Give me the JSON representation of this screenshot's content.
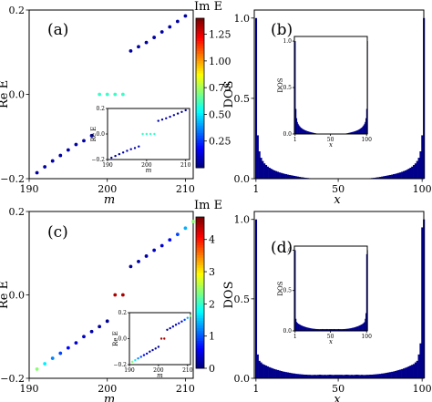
{
  "chart_data": [
    {
      "panel": "(a)",
      "type": "scatter",
      "xlabel": "m",
      "ylabel": "Re E",
      "xlim": [
        190,
        211
      ],
      "ylim": [
        -0.2,
        0.2
      ],
      "xticks": [
        "190",
        "200",
        "210"
      ],
      "yticks": [
        "0.2",
        "0.0",
        "−0.2"
      ],
      "colorbar": {
        "label": "Im E",
        "min": 0.0,
        "max": 1.4,
        "ticks": [
          "1.25",
          "1.00",
          "0.75",
          "0.50",
          "0.25"
        ],
        "tick_values": [
          1.25,
          1.0,
          0.75,
          0.5,
          0.25
        ]
      },
      "points": [
        {
          "x": 191,
          "y": -0.186,
          "c": 0.05
        },
        {
          "x": 192,
          "y": -0.172,
          "c": 0.05
        },
        {
          "x": 193,
          "y": -0.158,
          "c": 0.05
        },
        {
          "x": 194,
          "y": -0.145,
          "c": 0.05
        },
        {
          "x": 195,
          "y": -0.132,
          "c": 0.05
        },
        {
          "x": 196,
          "y": -0.119,
          "c": 0.05
        },
        {
          "x": 197,
          "y": -0.11,
          "c": 0.05
        },
        {
          "x": 198,
          "y": -0.098,
          "c": 0.05
        },
        {
          "x": 199,
          "y": 0.0,
          "c": 0.6
        },
        {
          "x": 200,
          "y": 0.0,
          "c": 0.6
        },
        {
          "x": 201,
          "y": 0.0,
          "c": 0.6
        },
        {
          "x": 202,
          "y": 0.0,
          "c": 0.6
        },
        {
          "x": 203,
          "y": 0.103,
          "c": 0.05
        },
        {
          "x": 204,
          "y": 0.113,
          "c": 0.05
        },
        {
          "x": 205,
          "y": 0.123,
          "c": 0.05
        },
        {
          "x": 206,
          "y": 0.135,
          "c": 0.05
        },
        {
          "x": 207,
          "y": 0.148,
          "c": 0.05
        },
        {
          "x": 208,
          "y": 0.16,
          "c": 0.05
        },
        {
          "x": 209,
          "y": 0.173,
          "c": 0.05
        },
        {
          "x": 210,
          "y": 0.186,
          "c": 0.05
        }
      ],
      "inset": {
        "xlabel": "m",
        "ylabel": "Re E",
        "xlim": [
          190,
          211
        ],
        "ylim": [
          -0.2,
          0.2
        ],
        "xticks": [
          "190",
          "200",
          "210"
        ],
        "yticks": [
          "0.2",
          "0.0",
          "−0.2"
        ]
      }
    },
    {
      "panel": "(b)",
      "type": "bar",
      "xlabel": "x",
      "ylabel": "DOS",
      "xlim": [
        0,
        101
      ],
      "ylim": [
        0,
        1.05
      ],
      "xticks": [
        "1",
        "50",
        "100"
      ],
      "yticks": [
        "0.0",
        "0.5",
        "1.0"
      ],
      "color": "#00008b",
      "values": [
        1.0,
        0.27,
        0.17,
        0.13,
        0.11,
        0.095,
        0.085,
        0.075,
        0.068,
        0.062,
        0.056,
        0.051,
        0.047,
        0.043,
        0.039,
        0.036,
        0.033,
        0.03,
        0.028,
        0.025,
        0.023,
        0.021,
        0.019,
        0.017,
        0.015,
        0.013,
        0.011,
        0.009,
        0.008,
        0.006,
        0.005,
        0.004,
        0.003,
        0.002,
        0.001,
        0.001,
        0.0,
        0.0,
        0.0,
        0.0,
        0.0,
        0.0,
        0.0,
        0.0,
        0.0,
        0.0,
        0.0,
        0.0,
        0.0,
        0.0,
        0.0,
        0.0,
        0.0,
        0.0,
        0.0,
        0.0,
        0.0,
        0.0,
        0.0,
        0.0,
        0.0,
        0.0,
        0.0,
        0.0,
        0.0,
        0.001,
        0.001,
        0.002,
        0.003,
        0.004,
        0.005,
        0.006,
        0.008,
        0.009,
        0.011,
        0.013,
        0.015,
        0.017,
        0.019,
        0.021,
        0.023,
        0.025,
        0.028,
        0.03,
        0.033,
        0.036,
        0.039,
        0.043,
        0.047,
        0.051,
        0.056,
        0.062,
        0.068,
        0.075,
        0.085,
        0.095,
        0.11,
        0.13,
        0.17,
        0.27,
        1.0
      ],
      "inset": {
        "xlabel": "x",
        "ylabel": "DOS",
        "xlim": [
          0,
          101
        ],
        "ylim": [
          0,
          1.05
        ],
        "xticks": [
          "1",
          "50",
          "100"
        ],
        "yticks": [
          "0.0",
          "0.5",
          "1.0"
        ]
      }
    },
    {
      "panel": "(c)",
      "type": "scatter",
      "xlabel": "m",
      "ylabel": "Re E",
      "xlim": [
        190,
        211
      ],
      "ylim": [
        -0.2,
        0.2
      ],
      "xticks": [
        "190",
        "200",
        "210"
      ],
      "yticks": [
        "0.2",
        "0.0",
        "−0.2"
      ],
      "colorbar": {
        "label": "Im E",
        "min": 0.0,
        "max": 4.7,
        "ticks": [
          "4",
          "3",
          "2",
          "1",
          "0"
        ],
        "tick_values": [
          4,
          3,
          2,
          1,
          0
        ]
      },
      "points": [
        {
          "x": 191,
          "y": -0.178,
          "c": 2.4
        },
        {
          "x": 192,
          "y": -0.165,
          "c": 1.7
        },
        {
          "x": 193,
          "y": -0.152,
          "c": 1.2
        },
        {
          "x": 194,
          "y": -0.14,
          "c": 0.9
        },
        {
          "x": 195,
          "y": -0.127,
          "c": 0.6
        },
        {
          "x": 196,
          "y": -0.115,
          "c": 0.4
        },
        {
          "x": 197,
          "y": -0.1,
          "c": 0.3
        },
        {
          "x": 198,
          "y": -0.088,
          "c": 0.2
        },
        {
          "x": 199,
          "y": -0.076,
          "c": 0.15
        },
        {
          "x": 200,
          "y": -0.063,
          "c": 0.1
        },
        {
          "x": 201,
          "y": 0.0,
          "c": 4.5
        },
        {
          "x": 202,
          "y": 0.0,
          "c": 4.5
        },
        {
          "x": 203,
          "y": 0.068,
          "c": 0.1
        },
        {
          "x": 204,
          "y": 0.08,
          "c": 0.15
        },
        {
          "x": 205,
          "y": 0.093,
          "c": 0.2
        },
        {
          "x": 206,
          "y": 0.107,
          "c": 0.3
        },
        {
          "x": 207,
          "y": 0.118,
          "c": 0.4
        },
        {
          "x": 208,
          "y": 0.132,
          "c": 0.6
        },
        {
          "x": 209,
          "y": 0.145,
          "c": 0.9
        },
        {
          "x": 210,
          "y": 0.16,
          "c": 1.4
        },
        {
          "x": 211,
          "y": 0.176,
          "c": 2.4
        }
      ],
      "inset": {
        "xlabel": "m",
        "ylabel": "Re E",
        "xlim": [
          190,
          211
        ],
        "ylim": [
          -0.2,
          0.2
        ],
        "xticks": [
          "190",
          "200",
          "210"
        ],
        "yticks": [
          "0.2",
          "0.0",
          "−0.2"
        ]
      }
    },
    {
      "panel": "(d)",
      "type": "bar",
      "xlabel": "x",
      "ylabel": "DOS",
      "xlim": [
        0,
        101
      ],
      "ylim": [
        0,
        1.05
      ],
      "xticks": [
        "1",
        "50",
        "100"
      ],
      "yticks": [
        "0.0",
        "0.5",
        "1.0"
      ],
      "color": "#00008b",
      "values": [
        1.0,
        0.15,
        0.11,
        0.1,
        0.09,
        0.085,
        0.08,
        0.075,
        0.07,
        0.066,
        0.062,
        0.058,
        0.055,
        0.052,
        0.049,
        0.046,
        0.043,
        0.041,
        0.039,
        0.037,
        0.035,
        0.033,
        0.031,
        0.03,
        0.028,
        0.027,
        0.026,
        0.025,
        0.024,
        0.023,
        0.023,
        0.022,
        0.022,
        0.021,
        0.021,
        0.022,
        0.021,
        0.022,
        0.023,
        0.022,
        0.021,
        0.022,
        0.021,
        0.022,
        0.023,
        0.022,
        0.021,
        0.022,
        0.022,
        0.022,
        0.022,
        0.022,
        0.021,
        0.022,
        0.023,
        0.022,
        0.021,
        0.022,
        0.021,
        0.022,
        0.023,
        0.022,
        0.021,
        0.022,
        0.021,
        0.021,
        0.022,
        0.022,
        0.023,
        0.023,
        0.024,
        0.025,
        0.026,
        0.027,
        0.028,
        0.03,
        0.031,
        0.033,
        0.035,
        0.037,
        0.039,
        0.041,
        0.043,
        0.046,
        0.049,
        0.052,
        0.055,
        0.058,
        0.062,
        0.066,
        0.07,
        0.075,
        0.08,
        0.085,
        0.09,
        0.1,
        0.11,
        0.15,
        0.22,
        0.95,
        1.0
      ],
      "inset": {
        "xlabel": "x",
        "ylabel": "DOS",
        "xlim": [
          0,
          101
        ],
        "ylim": [
          0,
          1.05
        ],
        "xticks": [
          "1",
          "50",
          "100"
        ],
        "yticks": [
          "0.0",
          "0.5",
          "1.0"
        ]
      }
    }
  ]
}
